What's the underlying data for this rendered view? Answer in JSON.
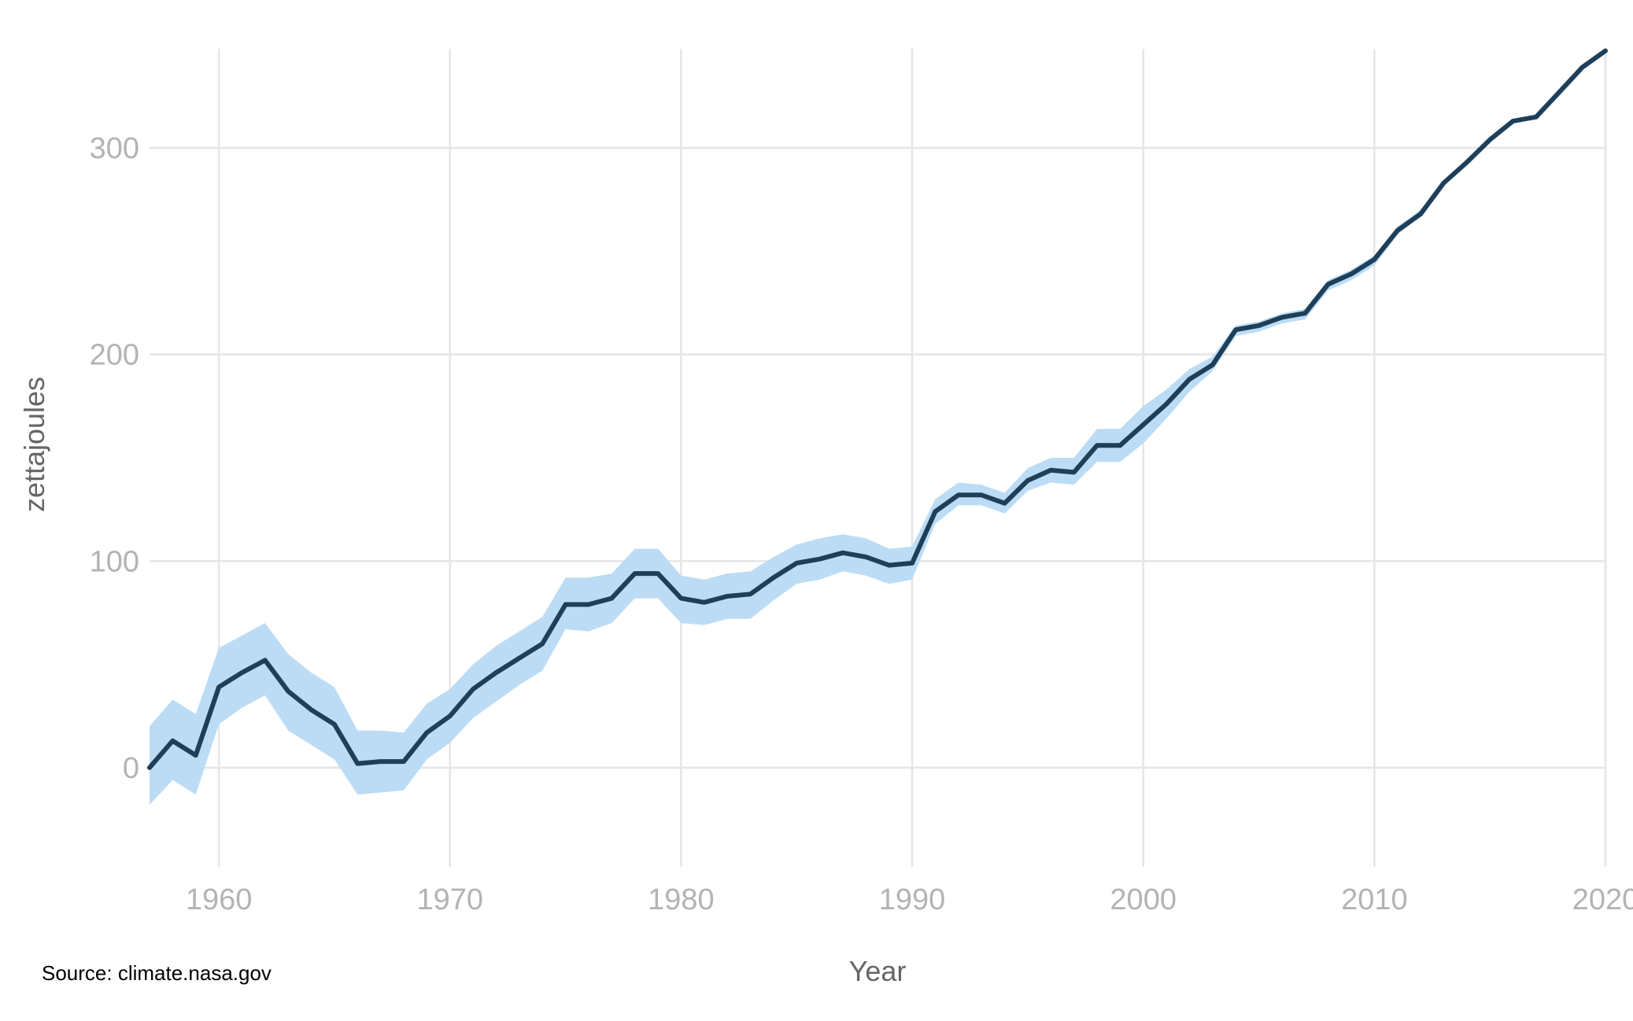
{
  "chart_data": {
    "type": "area",
    "title": "",
    "xlabel": "Year",
    "ylabel": "zettajoules",
    "xlim": [
      1957,
      2020
    ],
    "ylim": [
      -48,
      348
    ],
    "xticks": [
      1960,
      1970,
      1980,
      1990,
      2000,
      2010,
      2020
    ],
    "yticks": [
      0,
      100,
      200,
      300
    ],
    "grid": true,
    "legend": "none",
    "colors": {
      "line": "#1e3f5a",
      "band": "#bcdcf5",
      "grid": "#e5e5e5",
      "tick_text": "#b3b3b3",
      "axis_title": "#666666"
    },
    "x": [
      1957,
      1958,
      1959,
      1960,
      1961,
      1962,
      1963,
      1964,
      1965,
      1966,
      1967,
      1968,
      1969,
      1970,
      1971,
      1972,
      1973,
      1974,
      1975,
      1976,
      1977,
      1978,
      1979,
      1980,
      1981,
      1982,
      1983,
      1984,
      1985,
      1986,
      1987,
      1988,
      1989,
      1990,
      1991,
      1992,
      1993,
      1994,
      1995,
      1996,
      1997,
      1998,
      1999,
      2000,
      2001,
      2002,
      2003,
      2004,
      2005,
      2006,
      2007,
      2008,
      2009,
      2010,
      2011,
      2012,
      2013,
      2014,
      2015,
      2016,
      2017,
      2018,
      2019,
      2020
    ],
    "series": [
      {
        "values": [
          0,
          13,
          6,
          39,
          46,
          52,
          37,
          28,
          21,
          2,
          3,
          3,
          17,
          25,
          38,
          46,
          53,
          60,
          79,
          79,
          82,
          94,
          94,
          82,
          80,
          83,
          84,
          92,
          99,
          101,
          104,
          102,
          98,
          99,
          124,
          132,
          132,
          128,
          139,
          144,
          143,
          156,
          156,
          166,
          176,
          188,
          195,
          212,
          214,
          218,
          220,
          234,
          239,
          246,
          260,
          268,
          283,
          293,
          304,
          313,
          315,
          327,
          339,
          347
        ],
        "lower": [
          -18,
          -6,
          -13,
          21,
          29,
          35,
          18,
          11,
          4,
          -13,
          -12,
          -11,
          4,
          12,
          24,
          32,
          40,
          47,
          67,
          66,
          70,
          82,
          82,
          70,
          69,
          72,
          72,
          81,
          89,
          91,
          95,
          93,
          89,
          91,
          118,
          127,
          127,
          123,
          134,
          138,
          137,
          148,
          148,
          157,
          169,
          182,
          192,
          209,
          211,
          215,
          217,
          231,
          236,
          243,
          258,
          267,
          282,
          292,
          303,
          312,
          314,
          326,
          338,
          346
        ],
        "upper": [
          20,
          33,
          26,
          58,
          64,
          70,
          55,
          46,
          39,
          18,
          18,
          17,
          31,
          38,
          50,
          59,
          66,
          73,
          92,
          92,
          94,
          106,
          106,
          93,
          91,
          94,
          95,
          102,
          108,
          111,
          113,
          111,
          106,
          107,
          130,
          138,
          137,
          133,
          145,
          150,
          150,
          164,
          164,
          175,
          183,
          193,
          199,
          214,
          216,
          220,
          222,
          236,
          241,
          248,
          262,
          270,
          284,
          294,
          305,
          314,
          316,
          328,
          340,
          348
        ]
      }
    ]
  },
  "source_note": "Source: climate.nasa.gov"
}
